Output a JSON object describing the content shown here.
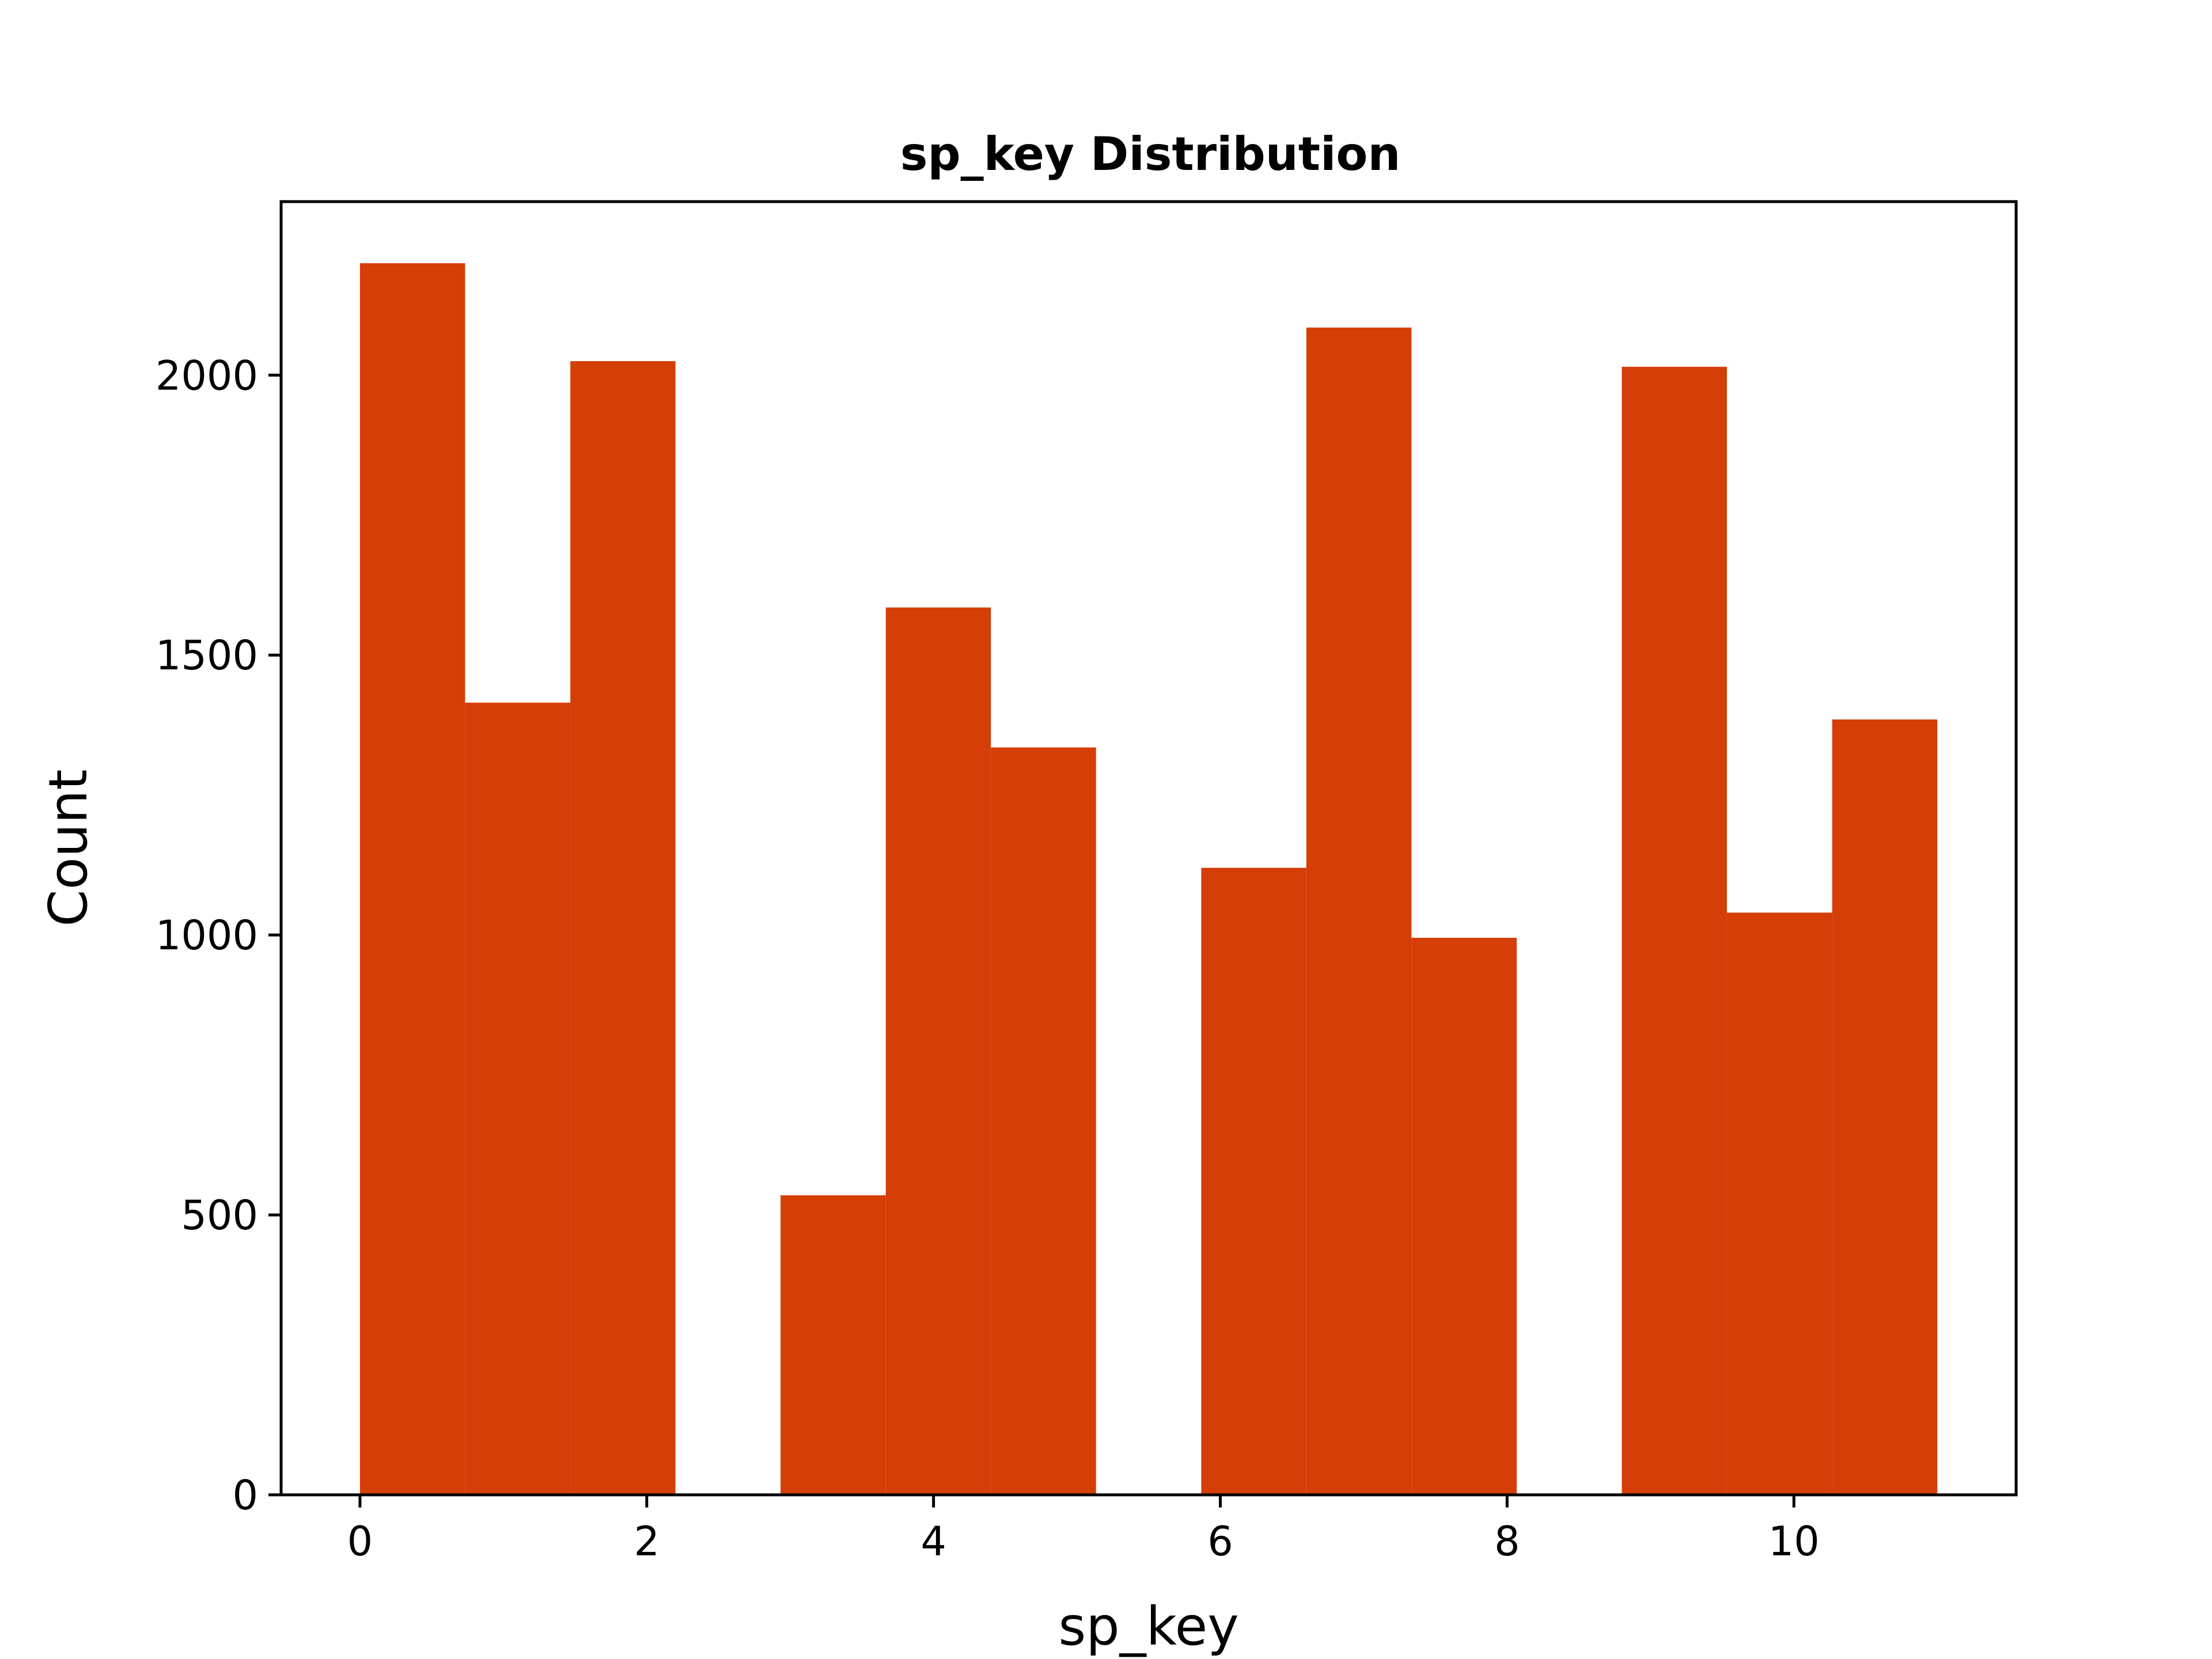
{
  "chart_data": {
    "type": "bar",
    "title": "sp_key Distribution",
    "xlabel": "sp_key",
    "ylabel": "Count",
    "xlim": [
      -0.55,
      11.55
    ],
    "ylim": [
      0,
      2310
    ],
    "x_ticks": [
      0,
      2,
      4,
      6,
      8,
      10
    ],
    "y_ticks": [
      0,
      500,
      1000,
      1500,
      2000
    ],
    "grid": false,
    "legend": "none",
    "bar_color": "#d53e07",
    "bins": [
      {
        "x0": 0.0,
        "x1": 0.733,
        "count": 2200
      },
      {
        "x0": 0.733,
        "x1": 1.467,
        "count": 1415
      },
      {
        "x0": 1.467,
        "x1": 2.2,
        "count": 2025
      },
      {
        "x0": 2.2,
        "x1": 2.933,
        "count": 0
      },
      {
        "x0": 2.933,
        "x1": 3.667,
        "count": 535
      },
      {
        "x0": 3.667,
        "x1": 4.4,
        "count": 1585
      },
      {
        "x0": 4.4,
        "x1": 5.133,
        "count": 1335
      },
      {
        "x0": 5.133,
        "x1": 5.867,
        "count": 0
      },
      {
        "x0": 5.867,
        "x1": 6.6,
        "count": 1120
      },
      {
        "x0": 6.6,
        "x1": 7.333,
        "count": 2085
      },
      {
        "x0": 7.333,
        "x1": 8.067,
        "count": 995
      },
      {
        "x0": 8.067,
        "x1": 8.8,
        "count": 0
      },
      {
        "x0": 8.8,
        "x1": 9.533,
        "count": 2015
      },
      {
        "x0": 9.533,
        "x1": 10.267,
        "count": 1040
      },
      {
        "x0": 10.267,
        "x1": 11.0,
        "count": 1385
      }
    ]
  }
}
